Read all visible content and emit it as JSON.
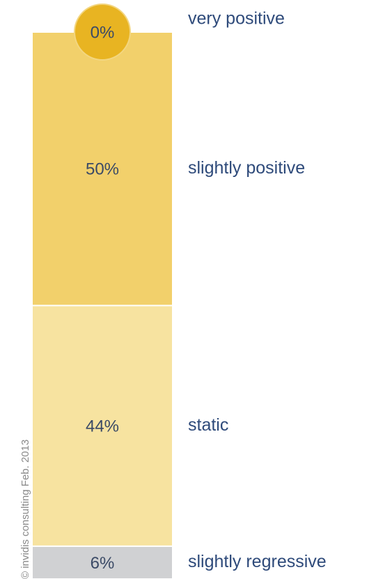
{
  "chart_data": {
    "type": "stacked_bar",
    "series": [
      {
        "name": "very positive",
        "color": "#e8b422",
        "values": [
          0
        ],
        "value_labels": [
          "0%"
        ]
      },
      {
        "name": "slightly positive",
        "color": "#f2d06b",
        "values": [
          50
        ],
        "value_labels": [
          "50%"
        ]
      },
      {
        "name": "static",
        "color": "#f7e3a0",
        "values": [
          44
        ],
        "value_labels": [
          "44%"
        ]
      },
      {
        "name": "slightly regressive",
        "color": "#d0d1d3",
        "values": [
          6
        ],
        "value_labels": [
          "6%"
        ]
      }
    ],
    "footnote": "© invidis consulting Feb. 2013"
  }
}
